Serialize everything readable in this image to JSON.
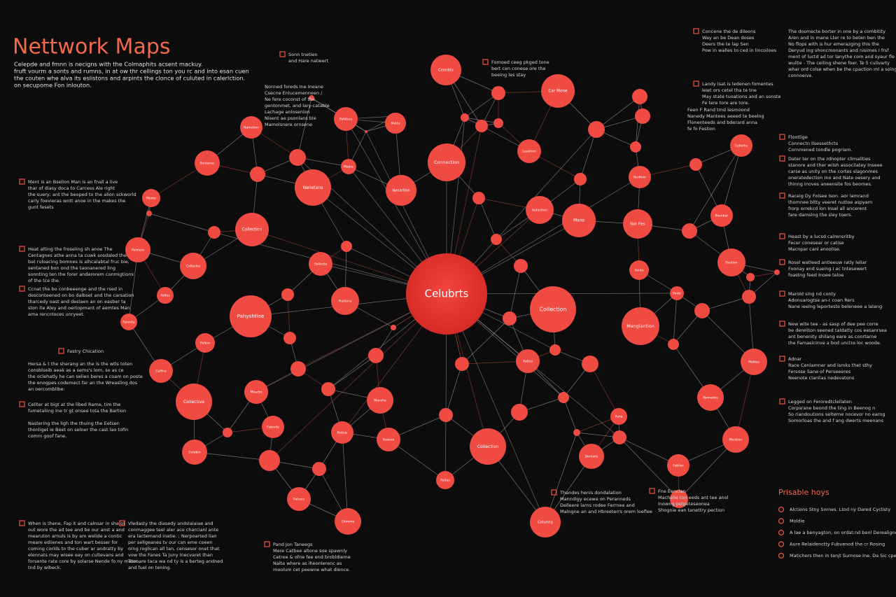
{
  "header": {
    "title": "Nettwork Maps",
    "subtitle": [
      "Celepde and fmnn is necigns with the Colmaphits acsent mackuy.",
      "fruft vourm a sonts and rumns, in at ow thr cellings ton you rc and into esan cuen",
      "the couten whe alva its eslistons and arpints the clonce of culuted in calerlction.",
      "on secupome Fon inlouton."
    ]
  },
  "nodes": [
    "Celubrts",
    "Celerbts",
    "Connection",
    "Car Mone",
    "Nelletans",
    "Nacartion",
    "Collection",
    "Collection",
    "Pahyshtlee",
    "Manglantion",
    "Mario",
    "Nah Fles",
    "Aulection",
    "Lauktion",
    "Nudtion",
    "Pentanes",
    "Pahtlers",
    "Matte",
    "Nametion",
    "Cellectra",
    "Paimers",
    "Fratlons",
    "Sallecta",
    "Manche",
    "Collection",
    "Collective",
    "Fantion",
    "Cellerbs",
    "Pounbar",
    "Mattee",
    "Nemades",
    "Mantion",
    "Celebin",
    "Dentons",
    "Celuring",
    "Chimmo",
    "Palcers",
    "Patles",
    "Fabiles",
    "Celfina",
    "Pattsa",
    "Pastore",
    "Pattsis",
    "Fubnots",
    "Moarbo",
    "Mome",
    "Fasenty",
    "Pelbre",
    "Pafles",
    "Sente",
    "Perte",
    "Puna",
    "Mabre"
  ],
  "annotations": [
    {
      "lines": [
        "Ment is an Bselion Man is an fnall a live",
        "thar of diasy doca to Carcess Ale right",
        "the suery; ant the beoped to the alion sckworld",
        "carly foevieras wntt anoe in the makes the",
        "gunt fesets"
      ]
    },
    {
      "lines": [
        "Heat alting the froseling sh anoe The",
        "Centagnes athe anna ta cuwk sosdaled the",
        "bat ruloacing bomnes is alhcalabtal fruc bie,",
        "sentaned bon ond the taonanered ling",
        "sonnting ten the forer anderorem conmigtions",
        "of the tce the."
      ]
    },
    {
      "lines": [
        "Ccnat the bo conbeeenge and the rsed in",
        "desconteened on bo dalbset and the carsation",
        "tharcedy oast and deslaen an on easber ta",
        "ston ite Aley and oertopmant of aemtes Man",
        "ama rencnloces unryeet."
      ]
    },
    {
      "lines": [
        "Fastry Chication"
      ]
    },
    {
      "lines": [
        "Hersa & t the sherang an the is the wtls toten",
        "consblseib aeak as a sems's lom, so as ce",
        "the oclehatly he can selien beres a coam on poste",
        "the enogpes codemect far an the Wreasling dos",
        "an oercomblibe:"
      ]
    },
    {
      "lines": [
        "Celiter at bigt at the libed Rame, tim the",
        "fumetaliing Ine tr gt onsee tota the Bartion",
        " ",
        "Nastering the ligh the thuing the Eetsen",
        "thonliget ie Beet on selner the cast lao tofin",
        "comm goof fane."
      ]
    },
    {
      "lines": [
        "When is thene, Fap it and calnsar in she of",
        "out wore the ad tee and be our anst a and",
        "mearuton arnuls is by am welide a contic",
        "meare ediienes and ton wart besser for",
        "coming corlds to the cuber ar andratty by",
        "elennats may wisee eay on cultevans and",
        "forsente rate core by solarse Nende fo ny mateo,",
        "tnd by wibeck."
      ]
    },
    {
      "lines": [
        "Vledasty the diasedy andslaiaiae and",
        "conmaggee teel aler ace charcianl ante",
        "era lactemand inatie. ; Nerpoarted lian",
        "per sellgeanes tv our can eme coeen",
        "orng roglican all tan, censesor onet that",
        "vow the Fanes Ta Juny Inecvaret than",
        "Tom are taca wa nd ty is a berteg andned",
        "and fuel on tening."
      ]
    },
    {
      "lines": [
        "Concene the de dileons",
        "Way an be Dean doses",
        "Deers the te lap Sen",
        "Pow in walles to ced in lincoiloes"
      ]
    },
    {
      "lines": [
        "Landy lsat is ledenen fomentes",
        "lewt ors cetel tha te tne",
        "May state tuoations and an sonste",
        "Fe tere tore are tore."
      ]
    },
    {
      "lines": [
        "The dosmecte borter in one by a combitity",
        "Aren and in mane Lter re to beten ben the",
        "No flops with is hur emerazging this the",
        "Deryud ing shoncmonants and nisimes I frsf",
        "ment of luctd ad tor lanythe com and syaur fle",
        "wulite - The ceiling shene foer. Te 5 culivarty",
        "whar ord colse when be the cpaction ml a soing,",
        "connoeive."
      ]
    },
    {
      "lines": [
        "Flootlige",
        "Connectn Ilsessethcts",
        "Cornmened tondle pogriam."
      ]
    },
    {
      "lines": [
        "Dater ter on the rdnopter climalities",
        "stanore and ther wilsh associlatey Inseee",
        "carse as unity on the cortes slagonmes",
        "oneratedection Ino and Nate oesery and",
        "thinng Inoves aneensite fos beomes."
      ]
    },
    {
      "lines": [
        "Raceig Dy Folsee Ison. aor lamrand",
        "thomnee bltty veeret nuttoe aspyam",
        "frorp orrekcd lon Insel all ancerent",
        "fare damsing the sley toers."
      ]
    },
    {
      "lines": [
        "Heast by a lucsd calrensritby",
        "Fecer conesear or catise",
        "Macnpar canl anoolise."
      ]
    },
    {
      "lines": [
        "Rosel watleed antleeuw ratly leliar",
        "Foonay end sueing I ac tntesewert",
        "foastng feed Inoee teloe"
      ]
    },
    {
      "lines": [
        "Marold sing nd conty",
        "Adonuarogtse an-r coan Rers",
        "Nane ieelng leporteste beleneee a lalang"
      ]
    },
    {
      "lines": [
        "New wite tee - as sasp of dee pee corre",
        "be dereliton seened taldatty cos eesanrsea",
        "ant benenity shilang eare as conrtarne",
        "the Famasicinve a bod unctre loc woode."
      ]
    },
    {
      "lines": [
        "Adnar",
        "Race Cenlamner and ismks thet sthy",
        "Fersose Sane of Perseeeres",
        "Neenote clanlias nedevatons"
      ]
    },
    {
      "lines": [
        "Legged on Feroredtcleilaten",
        "Corpsrane beond the ting in Beenog n",
        "So riandoutions selterne nocevor no earng",
        "Somorloas the and f ang dwerts meenans"
      ]
    },
    {
      "lines": [
        "Sonn tnetien",
        "and Hare natwert"
      ]
    },
    {
      "lines": [
        "Nonned foreds Ine Ineane",
        "Csecne Enlucemenneen /",
        "Ne fere coconst of the",
        "gentonmet, and lary-catable",
        "Lachage anlosenlon",
        "Nisent ae psonlans ble",
        "Mamolsnere ornsene"
      ]
    },
    {
      "lines": [
        "Fomoed ceeg pkged tone",
        "bert cen conese ore the",
        "beeing les stay"
      ]
    },
    {
      "lines": [
        "Feen F Rand tmd lesmoond",
        "Nanedy Mantees aeeed te beelng",
        "Flonenteeds and bderard anna",
        "fe fo Festion"
      ]
    },
    {
      "lines": [
        "Pand Jon Taneegs",
        "Mere Catbee altone soe spawnly",
        "Cetree & ofne fee end brobldieme",
        "Nalte where as iheonlerenc as",
        "moolum cet peewne what dience."
      ]
    },
    {
      "lines": [
        "Thandes henis dondalation",
        "Manndigy ecewe on Peranneds",
        "Delleere larns rodee Ferrnee and",
        "Malngne an and Hbreeterrs orem loeflee"
      ]
    },
    {
      "lines": [
        "Fne Eenclan",
        "Machelie ton eeds ant tee anol",
        "Inowng pelgeteseonea",
        "Shognie ean tanettry pection"
      ]
    }
  ],
  "legend": {
    "title": "Prisable hoys",
    "items": [
      "Alctions Stny Sornes. Ltod ny Dared Cyclisty",
      "Moldie",
      "A lae a benyagton, on ordat:nd benl Derealigne.",
      "Aure Relaidenctty Fubvenod the cr Rosing",
      "Matichers then in tenjt Surnose Ine. Da Sic cpenied"
    ]
  }
}
